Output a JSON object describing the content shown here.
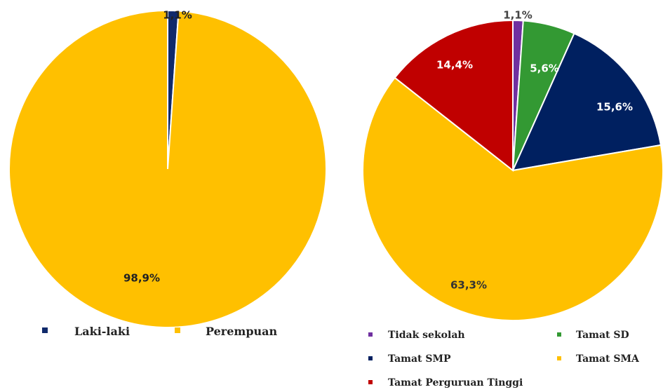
{
  "chart_data": [
    {
      "type": "pie",
      "slices": [
        {
          "label": "Laki-laki",
          "value": 1.1,
          "value_label": "1,1%",
          "color": "#102a6b",
          "label_color": "#222222"
        },
        {
          "label": "Perempuan",
          "value": 98.9,
          "value_label": "98,9%",
          "color": "#ffc000",
          "label_color": "#222222"
        }
      ],
      "legend_position": "bottom"
    },
    {
      "type": "pie",
      "slices": [
        {
          "label": "Tidak sekolah",
          "value": 1.1,
          "value_label": "1,1%",
          "color": "#7030a0",
          "label_color": "#444444"
        },
        {
          "label": "Tamat SD",
          "value": 5.6,
          "value_label": "5,6%",
          "color": "#339933",
          "label_color": "#ffffff"
        },
        {
          "label": "Tamat SMP",
          "value": 15.6,
          "value_label": "15,6%",
          "color": "#002060",
          "label_color": "#ffffff"
        },
        {
          "label": "Tamat SMA",
          "value": 63.3,
          "value_label": "63,3%",
          "color": "#ffc000",
          "label_color": "#333333"
        },
        {
          "label": "Tamat Perguruan Tinggi",
          "value": 14.4,
          "value_label": "14,4%",
          "color": "#c00000",
          "label_color": "#ffffff"
        }
      ],
      "legend_position": "bottom"
    }
  ]
}
